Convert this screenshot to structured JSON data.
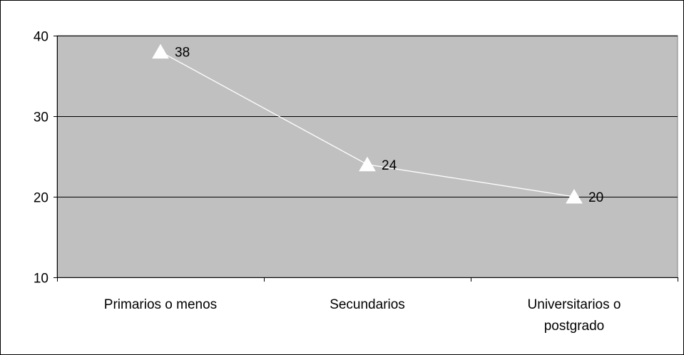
{
  "chart_data": {
    "type": "line",
    "title": "",
    "xlabel": "",
    "ylabel": "",
    "categories": [
      [
        "Primarios o menos"
      ],
      [
        "Secundarios"
      ],
      [
        "Universitarios o",
        "postgrado"
      ]
    ],
    "series": [
      {
        "values": [
          38,
          24,
          20
        ],
        "data_labels": [
          "38",
          "24",
          "20"
        ],
        "marker": "triangle",
        "color": "#ffffff"
      }
    ],
    "ylim": [
      10,
      40
    ],
    "yticks": [
      10,
      20,
      30,
      40
    ],
    "grid": true,
    "legend": "none",
    "plot_background": "#c0c0c0",
    "gridline_color": "#000000"
  }
}
